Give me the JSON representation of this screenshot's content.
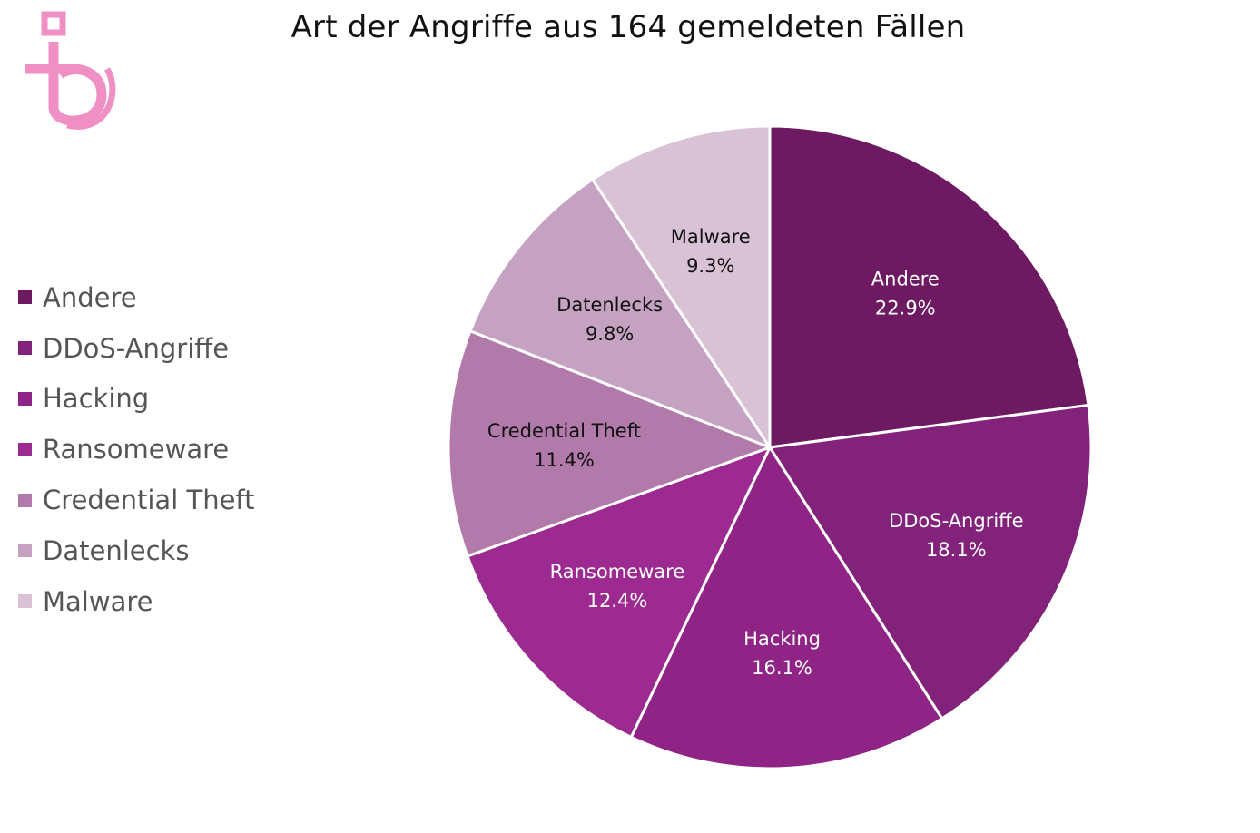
{
  "chart_data": {
    "type": "pie",
    "title": "Art der Angriffe aus 164 gemeldeten Fällen",
    "legend_position": "left",
    "slices": [
      {
        "name": "Andere",
        "value": 22.9,
        "label": "22.9%",
        "color": "#6d1a63",
        "text_color": "#ffffff"
      },
      {
        "name": "DDoS-Angriffe",
        "value": 18.1,
        "label": "18.1%",
        "color": "#82227a",
        "text_color": "#ffffff"
      },
      {
        "name": "Hacking",
        "value": 16.1,
        "label": "16.1%",
        "color": "#8f2486",
        "text_color": "#ffffff"
      },
      {
        "name": "Ransomeware",
        "value": 12.4,
        "label": "12.4%",
        "color": "#9c2a91",
        "text_color": "#ffffff"
      },
      {
        "name": "Credential Theft",
        "value": 11.4,
        "label": "11.4%",
        "color": "#b27aab",
        "text_color": "#111111"
      },
      {
        "name": "Datenlecks",
        "value": 9.8,
        "label": "9.8%",
        "color": "#c5a2c2",
        "text_color": "#111111"
      },
      {
        "name": "Malware",
        "value": 9.3,
        "label": "9.3%",
        "color": "#d9c1d6",
        "text_color": "#111111"
      }
    ]
  },
  "logo": {
    "color": "#f08fc4"
  }
}
